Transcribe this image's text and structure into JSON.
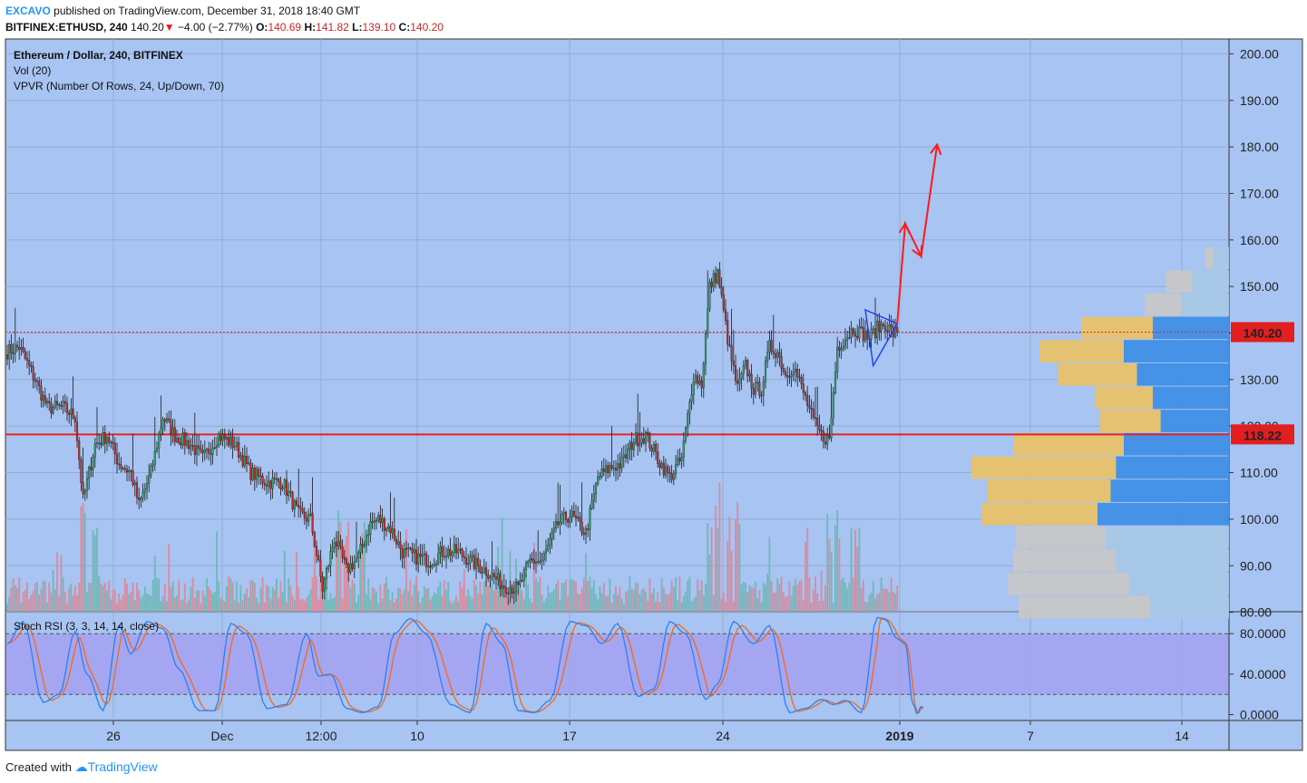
{
  "header": {
    "author": "EXCAVO",
    "published": "published on TradingView.com, December 31, 2018 18:40 GMT",
    "symbol": "BITFINEX:ETHUSD, 240",
    "last": "140.20",
    "change_arrow": "▼",
    "change": "−4.00 (−2.77%)",
    "open_label": "O:",
    "open": "140.69",
    "high_label": "H:",
    "high": "141.82",
    "low_label": "L:",
    "low": "139.10",
    "close_label": "C:",
    "close": "140.20"
  },
  "footer": {
    "created_with": "Created with",
    "brand": "TradingView"
  },
  "colors": {
    "background": "#a7c4f2",
    "rsi_band": "#a5a1f1",
    "candle_up": "#2ea26b",
    "candle_down": "#c62828",
    "volume_up": "#6fb8b8",
    "volume_down": "#d98a9c",
    "level_line": "#e52421",
    "triangle": "#1e3cf0",
    "projection": "#ff1a1a",
    "stoch_k": "#2f7ff0",
    "stoch_d": "#f06a1e",
    "vp_up": "#3f8fe6",
    "vp_down": "#e8c26a",
    "vp_up_gray": "#a6c8e6",
    "vp_down_gray": "#c7c7c7"
  },
  "chart_data": [
    {
      "type": "candlestick",
      "title": "Ethereum / Dollar, 240, BITFINEX",
      "indicators": [
        "Vol (20)",
        "VPVR (Number Of Rows, 24, Up/Down, 70)"
      ],
      "ylim": [
        78,
        203
      ],
      "yticks": [
        "200.00",
        "190.00",
        "180.00",
        "170.00",
        "160.00",
        "150.00",
        "140.00",
        "130.00",
        "120.00",
        "110.00",
        "100.00",
        "90.00",
        "80.00"
      ],
      "xticks": [
        "26",
        "Dec",
        "12:00",
        "10",
        "17",
        "24",
        "2019",
        "7",
        "14"
      ],
      "price_labels": [
        {
          "value": 140.2,
          "text": "140.20",
          "style": "dotted"
        },
        {
          "value": 118.22,
          "text": "118.22",
          "style": "solid"
        }
      ],
      "anchors": [
        {
          "x": 0,
          "y": 136
        },
        {
          "x": 6,
          "y": 137
        },
        {
          "x": 14,
          "y": 130
        },
        {
          "x": 20,
          "y": 124
        },
        {
          "x": 28,
          "y": 124
        },
        {
          "x": 34,
          "y": 122
        },
        {
          "x": 38,
          "y": 104
        },
        {
          "x": 44,
          "y": 116
        },
        {
          "x": 50,
          "y": 118
        },
        {
          "x": 56,
          "y": 112
        },
        {
          "x": 62,
          "y": 110
        },
        {
          "x": 66,
          "y": 103
        },
        {
          "x": 72,
          "y": 110
        },
        {
          "x": 78,
          "y": 122
        },
        {
          "x": 84,
          "y": 118
        },
        {
          "x": 92,
          "y": 116
        },
        {
          "x": 98,
          "y": 113
        },
        {
          "x": 106,
          "y": 118
        },
        {
          "x": 114,
          "y": 116
        },
        {
          "x": 122,
          "y": 110
        },
        {
          "x": 130,
          "y": 108
        },
        {
          "x": 138,
          "y": 108
        },
        {
          "x": 146,
          "y": 101
        },
        {
          "x": 152,
          "y": 100
        },
        {
          "x": 158,
          "y": 85
        },
        {
          "x": 164,
          "y": 96
        },
        {
          "x": 170,
          "y": 89
        },
        {
          "x": 176,
          "y": 92
        },
        {
          "x": 182,
          "y": 99
        },
        {
          "x": 186,
          "y": 100
        },
        {
          "x": 192,
          "y": 98
        },
        {
          "x": 198,
          "y": 93
        },
        {
          "x": 204,
          "y": 92
        },
        {
          "x": 212,
          "y": 91
        },
        {
          "x": 218,
          "y": 93
        },
        {
          "x": 226,
          "y": 93
        },
        {
          "x": 232,
          "y": 91
        },
        {
          "x": 240,
          "y": 89
        },
        {
          "x": 248,
          "y": 86
        },
        {
          "x": 256,
          "y": 85
        },
        {
          "x": 262,
          "y": 91
        },
        {
          "x": 268,
          "y": 91
        },
        {
          "x": 276,
          "y": 99
        },
        {
          "x": 282,
          "y": 101
        },
        {
          "x": 290,
          "y": 97
        },
        {
          "x": 296,
          "y": 109
        },
        {
          "x": 302,
          "y": 111
        },
        {
          "x": 308,
          "y": 112
        },
        {
          "x": 314,
          "y": 117
        },
        {
          "x": 320,
          "y": 118
        },
        {
          "x": 326,
          "y": 113
        },
        {
          "x": 332,
          "y": 109
        },
        {
          "x": 338,
          "y": 113
        },
        {
          "x": 344,
          "y": 131
        },
        {
          "x": 348,
          "y": 129
        },
        {
          "x": 352,
          "y": 150
        },
        {
          "x": 356,
          "y": 153
        },
        {
          "x": 362,
          "y": 136
        },
        {
          "x": 366,
          "y": 128
        },
        {
          "x": 370,
          "y": 133
        },
        {
          "x": 374,
          "y": 128
        },
        {
          "x": 378,
          "y": 128
        },
        {
          "x": 382,
          "y": 137
        },
        {
          "x": 386,
          "y": 136
        },
        {
          "x": 390,
          "y": 131
        },
        {
          "x": 394,
          "y": 133
        },
        {
          "x": 400,
          "y": 126
        },
        {
          "x": 404,
          "y": 121
        },
        {
          "x": 408,
          "y": 118
        },
        {
          "x": 412,
          "y": 117
        },
        {
          "x": 416,
          "y": 137
        },
        {
          "x": 420,
          "y": 139
        },
        {
          "x": 424,
          "y": 141
        },
        {
          "x": 428,
          "y": 140
        },
        {
          "x": 432,
          "y": 139
        },
        {
          "x": 436,
          "y": 141
        },
        {
          "x": 440,
          "y": 142
        },
        {
          "x": 444,
          "y": 140
        },
        {
          "x": 446,
          "y": 140.2
        }
      ],
      "volume_profile_rows": [
        {
          "price": 156.0,
          "up": 0.06,
          "down": 0.03
        },
        {
          "price": 151.0,
          "up": 0.14,
          "down": 0.1
        },
        {
          "price": 146.0,
          "up": 0.18,
          "down": 0.14
        },
        {
          "price": 141.0,
          "up": 0.29,
          "down": 0.27
        },
        {
          "price": 136.0,
          "up": 0.4,
          "down": 0.32
        },
        {
          "price": 131.0,
          "up": 0.35,
          "down": 0.3
        },
        {
          "price": 126.0,
          "up": 0.29,
          "down": 0.22
        },
        {
          "price": 121.0,
          "up": 0.26,
          "down": 0.23
        },
        {
          "price": 116.0,
          "up": 0.4,
          "down": 0.42
        },
        {
          "price": 111.0,
          "up": 0.43,
          "down": 0.55
        },
        {
          "price": 106.0,
          "up": 0.45,
          "down": 0.47
        },
        {
          "price": 101.0,
          "up": 0.5,
          "down": 0.44
        },
        {
          "price": 96.0,
          "up": 0.47,
          "down": 0.34
        },
        {
          "price": 91.0,
          "up": 0.43,
          "down": 0.39
        },
        {
          "price": 86.0,
          "up": 0.38,
          "down": 0.46
        },
        {
          "price": 81.0,
          "up": 0.3,
          "down": 0.5
        }
      ],
      "triangle": {
        "points": [
          [
            430,
            145
          ],
          [
            446,
            142
          ],
          [
            434,
            133
          ]
        ]
      },
      "projection": [
        [
          446,
          142
        ],
        [
          450,
          163.5
        ],
        [
          458,
          156.5
        ],
        [
          466,
          180.5
        ]
      ]
    },
    {
      "type": "line",
      "title": "Stoch RSI (3, 3, 14, 14, close)",
      "ylim": [
        -4,
        99
      ],
      "yticks": [
        "80.0000",
        "40.0000",
        "0.0000"
      ],
      "band": [
        20,
        80
      ],
      "cycles": [
        {
          "x": 0,
          "y": 70
        },
        {
          "x": 8,
          "y": 92
        },
        {
          "x": 18,
          "y": 12
        },
        {
          "x": 26,
          "y": 20
        },
        {
          "x": 34,
          "y": 82
        },
        {
          "x": 40,
          "y": 40
        },
        {
          "x": 48,
          "y": 4
        },
        {
          "x": 56,
          "y": 88
        },
        {
          "x": 62,
          "y": 60
        },
        {
          "x": 70,
          "y": 92
        },
        {
          "x": 78,
          "y": 85
        },
        {
          "x": 86,
          "y": 45
        },
        {
          "x": 96,
          "y": 4
        },
        {
          "x": 104,
          "y": 4
        },
        {
          "x": 112,
          "y": 90
        },
        {
          "x": 120,
          "y": 80
        },
        {
          "x": 130,
          "y": 6
        },
        {
          "x": 140,
          "y": 10
        },
        {
          "x": 150,
          "y": 80
        },
        {
          "x": 156,
          "y": 38
        },
        {
          "x": 162,
          "y": 40
        },
        {
          "x": 170,
          "y": 6
        },
        {
          "x": 178,
          "y": 2
        },
        {
          "x": 186,
          "y": 8
        },
        {
          "x": 194,
          "y": 80
        },
        {
          "x": 202,
          "y": 95
        },
        {
          "x": 210,
          "y": 80
        },
        {
          "x": 222,
          "y": 10
        },
        {
          "x": 232,
          "y": 2
        },
        {
          "x": 240,
          "y": 90
        },
        {
          "x": 248,
          "y": 70
        },
        {
          "x": 256,
          "y": 4
        },
        {
          "x": 264,
          "y": 2
        },
        {
          "x": 272,
          "y": 14
        },
        {
          "x": 282,
          "y": 92
        },
        {
          "x": 290,
          "y": 88
        },
        {
          "x": 298,
          "y": 70
        },
        {
          "x": 306,
          "y": 90
        },
        {
          "x": 316,
          "y": 18
        },
        {
          "x": 324,
          "y": 25
        },
        {
          "x": 332,
          "y": 92
        },
        {
          "x": 340,
          "y": 80
        },
        {
          "x": 350,
          "y": 15
        },
        {
          "x": 356,
          "y": 30
        },
        {
          "x": 364,
          "y": 92
        },
        {
          "x": 374,
          "y": 70
        },
        {
          "x": 382,
          "y": 88
        },
        {
          "x": 392,
          "y": 2
        },
        {
          "x": 400,
          "y": 6
        },
        {
          "x": 408,
          "y": 15
        },
        {
          "x": 414,
          "y": 10
        },
        {
          "x": 420,
          "y": 14
        },
        {
          "x": 428,
          "y": 2
        },
        {
          "x": 436,
          "y": 96
        },
        {
          "x": 440,
          "y": 94
        },
        {
          "x": 446,
          "y": 75
        },
        {
          "x": 450,
          "y": 70
        },
        {
          "x": 454,
          "y": 10
        },
        {
          "x": 456,
          "y": 1
        },
        {
          "x": 458,
          "y": 8
        },
        {
          "x": 459,
          "y": 6
        }
      ]
    }
  ]
}
